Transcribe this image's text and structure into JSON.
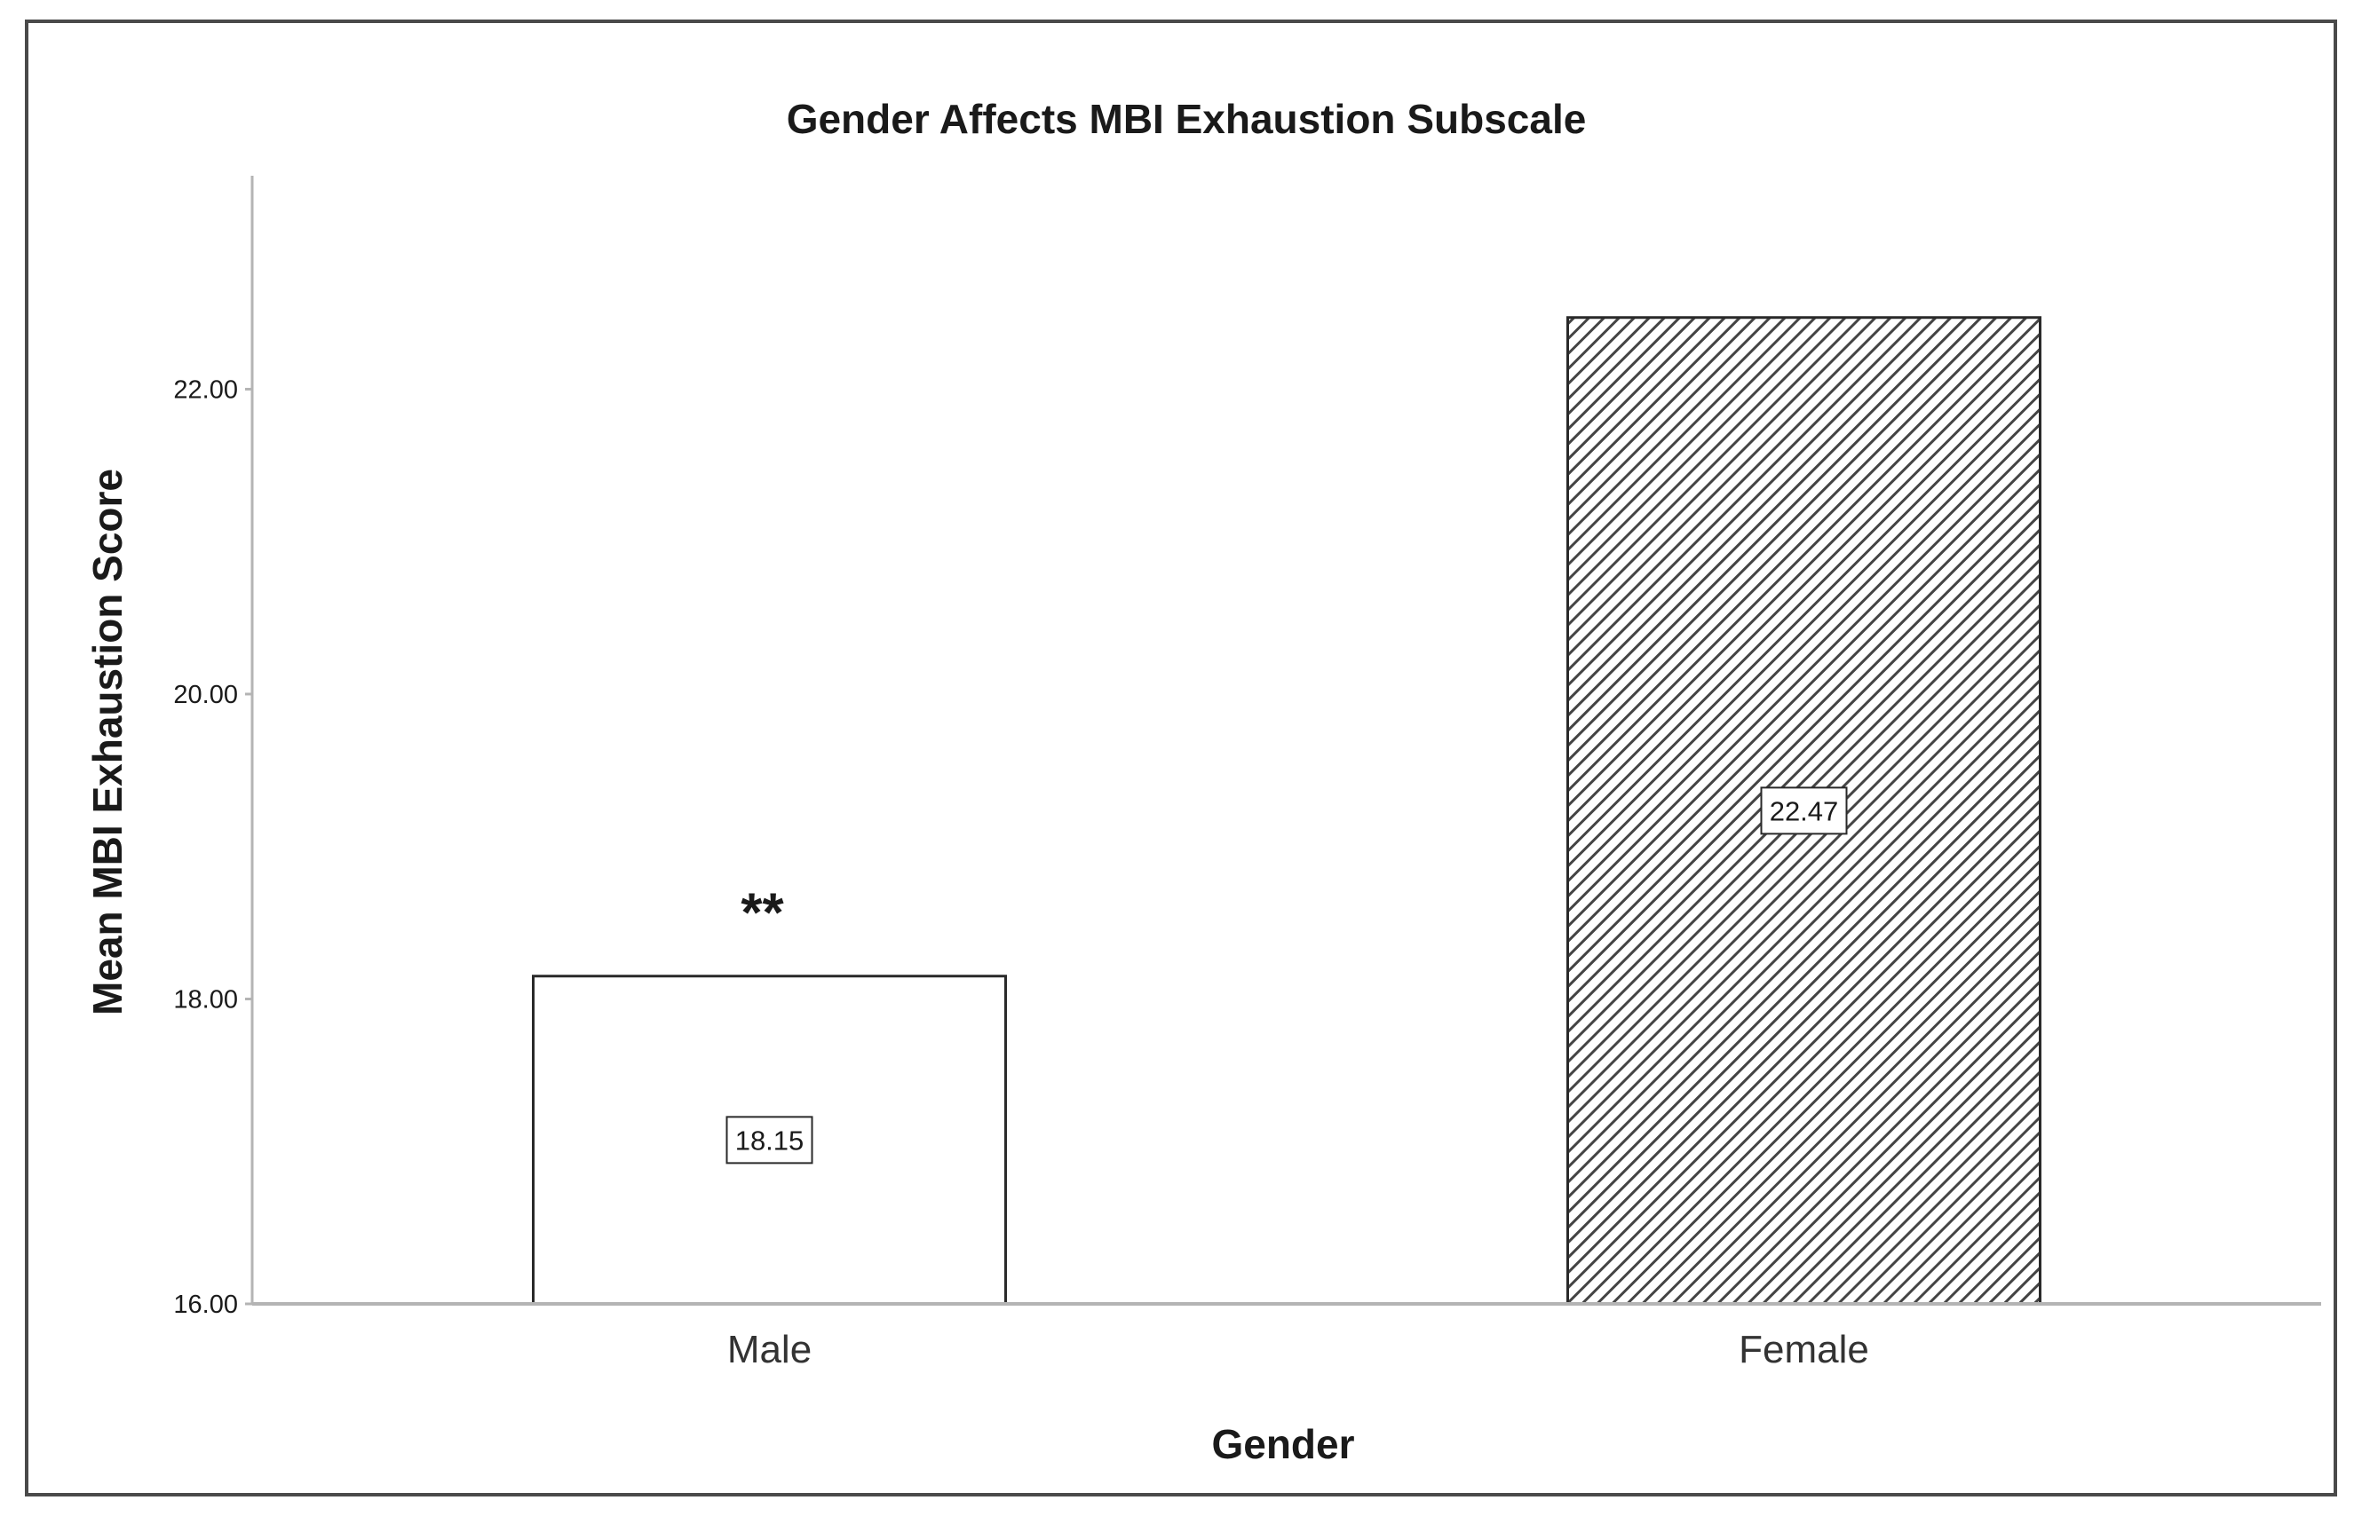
{
  "chart_data": {
    "type": "bar",
    "title": "Gender Affects MBI Exhaustion Subscale",
    "xlabel": "Gender",
    "ylabel": "Mean MBI Exhaustion Score",
    "categories": [
      "Male",
      "Female"
    ],
    "values": [
      18.15,
      22.47
    ],
    "data_labels": [
      "18.15",
      "22.47"
    ],
    "ylim": [
      16,
      23.4
    ],
    "yticks": [
      16,
      18,
      20,
      22
    ],
    "ytick_labels": [
      "16.00",
      "18.00",
      "20.00",
      "22.00"
    ],
    "bar_fills": [
      "plain",
      "diagonal-hatch"
    ],
    "annotations": [
      {
        "text": "**",
        "category": "Male"
      }
    ],
    "grid": false,
    "legend": "none"
  },
  "colors": {
    "bar_outline": "#2a2a2a",
    "hatch": "#444444",
    "axis": "#b4b4b4",
    "frame": "#4a4a4a"
  }
}
